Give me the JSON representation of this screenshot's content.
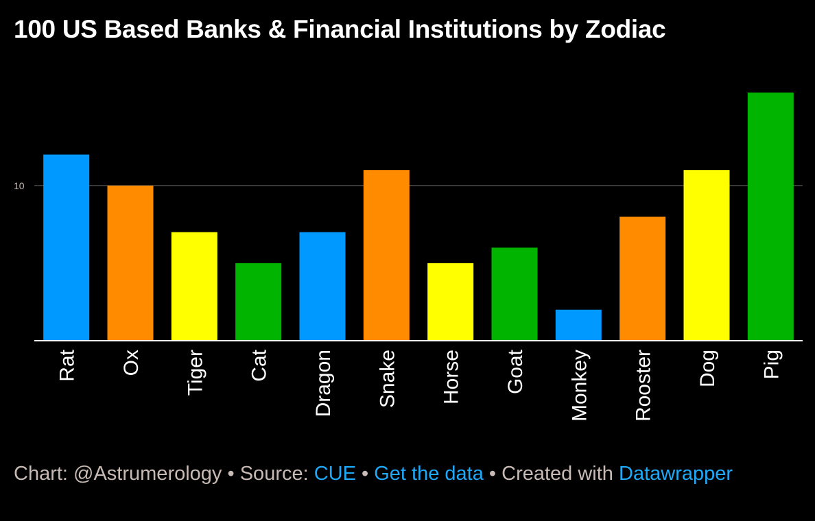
{
  "title": "100 US Based Banks & Financial Institutions by Zodiac",
  "chart_data": {
    "type": "bar",
    "title": "100 US Based Banks & Financial Institutions by Zodiac",
    "xlabel": "",
    "ylabel": "",
    "categories": [
      "Rat",
      "Ox",
      "Tiger",
      "Cat",
      "Dragon",
      "Snake",
      "Horse",
      "Goat",
      "Monkey",
      "Rooster",
      "Dog",
      "Pig"
    ],
    "values": [
      12,
      10,
      7,
      5,
      7,
      11,
      5,
      6,
      2,
      8,
      11,
      16
    ],
    "colors": [
      "#0099ff",
      "#ff8c00",
      "#ffff00",
      "#00b400",
      "#0099ff",
      "#ff8c00",
      "#ffff00",
      "#00b400",
      "#0099ff",
      "#ff8c00",
      "#ffff00",
      "#00b400"
    ],
    "yticks": [
      10
    ],
    "ylim": [
      0,
      16
    ],
    "grid": true,
    "legend": "none"
  },
  "footer": {
    "chart_label": "Chart: @Astrumerology",
    "sep1": " • ",
    "source_label": "Source: ",
    "source_link": "CUE",
    "sep2": " • ",
    "data_link": "Get the data",
    "sep3": " • ",
    "created_label": "Created with ",
    "datawrapper_link": "Datawrapper"
  },
  "colors": {
    "background": "#000000",
    "text": "#ffffff",
    "footer_text": "#c8bab4",
    "link": "#1fa9f6"
  }
}
